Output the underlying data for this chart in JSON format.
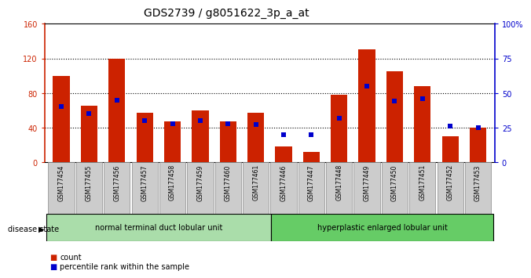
{
  "title": "GDS2739 / g8051622_3p_a_at",
  "samples": [
    "GSM177454",
    "GSM177455",
    "GSM177456",
    "GSM177457",
    "GSM177458",
    "GSM177459",
    "GSM177460",
    "GSM177461",
    "GSM177446",
    "GSM177447",
    "GSM177448",
    "GSM177449",
    "GSM177450",
    "GSM177451",
    "GSM177452",
    "GSM177453"
  ],
  "counts": [
    100,
    65,
    120,
    57,
    47,
    60,
    47,
    57,
    18,
    12,
    78,
    130,
    105,
    88,
    30,
    40
  ],
  "percentiles": [
    40,
    35,
    45,
    30,
    28,
    30,
    28,
    27,
    20,
    20,
    32,
    55,
    44,
    46,
    26,
    25
  ],
  "left_ylim": [
    0,
    160
  ],
  "right_ylim": [
    0,
    100
  ],
  "left_yticks": [
    0,
    40,
    80,
    120,
    160
  ],
  "right_yticks": [
    0,
    25,
    50,
    75,
    100
  ],
  "right_yticklabels": [
    "0",
    "25",
    "50",
    "75",
    "100%"
  ],
  "bar_color": "#cc2200",
  "dot_color": "#0000cc",
  "bar_width": 0.6,
  "group1_label": "normal terminal duct lobular unit",
  "group2_label": "hyperplastic enlarged lobular unit",
  "group1_color": "#aaddaa",
  "group2_color": "#66cc66",
  "disease_state_label": "disease state",
  "legend_count_label": "count",
  "legend_percentile_label": "percentile rank within the sample",
  "title_fontsize": 10,
  "tick_fontsize": 7,
  "label_fontsize": 7,
  "xtick_bg_color": "#cccccc",
  "xtick_box_color": "#888888"
}
